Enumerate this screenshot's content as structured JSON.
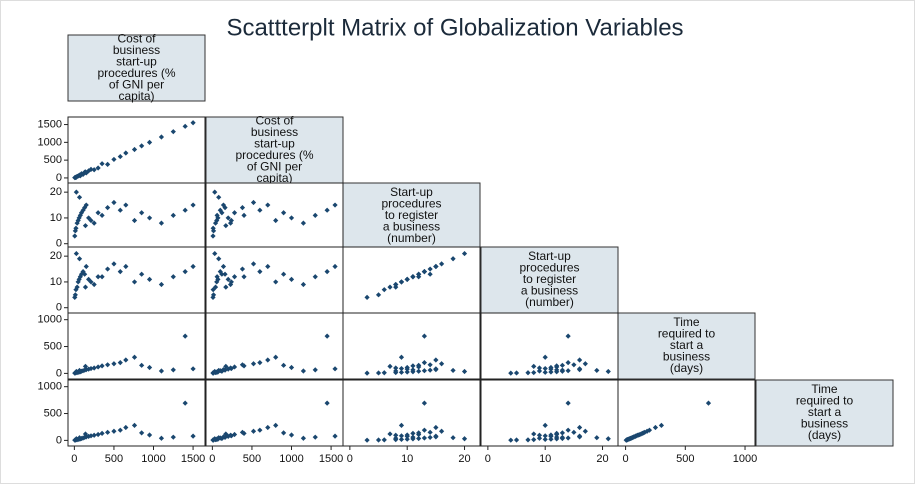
{
  "chart_data": {
    "type": "scatter_matrix",
    "title": "Scattterplt Matrix of Globalization Variables",
    "color": "#1a476f",
    "variables": [
      {
        "label_lines": [
          "Cost of",
          "business",
          "start-up",
          "procedures (%",
          "of GNI per",
          "capita)"
        ],
        "lim": [
          -30,
          1600
        ],
        "ticks": [
          0,
          500,
          1000,
          1500
        ],
        "values": [
          5,
          12,
          20,
          35,
          48,
          60,
          75,
          90,
          110,
          130,
          150,
          180,
          210,
          250,
          300,
          350,
          420,
          500,
          580,
          650,
          760,
          850,
          950,
          1100,
          1250,
          1400,
          1500,
          25,
          65,
          140
        ]
      },
      {
        "label_lines": [
          "Cost of",
          "business",
          "start-up",
          "procedures (%",
          "of GNI per",
          "capita)"
        ],
        "lim": [
          -30,
          1600
        ],
        "ticks": [
          0,
          500,
          1000,
          1500
        ],
        "values": [
          8,
          15,
          10,
          40,
          55,
          70,
          60,
          120,
          100,
          160,
          140,
          200,
          240,
          230,
          280,
          400,
          380,
          520,
          600,
          700,
          800,
          900,
          1000,
          1150,
          1300,
          1450,
          1550,
          30,
          80,
          170
        ]
      },
      {
        "label_lines": [
          "Start-up",
          "procedures",
          "to register",
          "a business",
          "(number)"
        ],
        "lim": [
          -0.5,
          22
        ],
        "ticks": [
          0,
          10,
          20
        ],
        "values": [
          3,
          5,
          6,
          8,
          9,
          10,
          11,
          12,
          13,
          14,
          15,
          10,
          9,
          8,
          12,
          11,
          14,
          16,
          13,
          15,
          9,
          12,
          10,
          8,
          11,
          13,
          15,
          20,
          18,
          7
        ]
      },
      {
        "label_lines": [
          "Start-up",
          "procedures",
          "to register",
          "a business",
          "(number)"
        ],
        "lim": [
          -0.5,
          22
        ],
        "ticks": [
          0,
          10,
          20
        ],
        "values": [
          4,
          5,
          7,
          8,
          10,
          11,
          12,
          13,
          14,
          13,
          16,
          11,
          10,
          9,
          12,
          12,
          15,
          17,
          14,
          16,
          10,
          13,
          11,
          9,
          12,
          14,
          16,
          21,
          19,
          8
        ]
      },
      {
        "label_lines": [
          "Time",
          "required to",
          "start a",
          "business",
          "(days)"
        ],
        "lim": [
          -30,
          1050
        ],
        "ticks": [
          0,
          500,
          1000
        ],
        "values": [
          5,
          8,
          12,
          15,
          20,
          25,
          30,
          40,
          50,
          60,
          70,
          80,
          90,
          100,
          120,
          140,
          160,
          180,
          200,
          250,
          300,
          150,
          110,
          45,
          65,
          694,
          85,
          35,
          55,
          130
        ]
      },
      {
        "label_lines": [
          "Time",
          "required to",
          "start a",
          "business",
          "(days)"
        ],
        "lim": [
          -30,
          1050
        ],
        "ticks": [
          0,
          500,
          1000
        ],
        "values": [
          4,
          7,
          10,
          14,
          18,
          22,
          28,
          35,
          45,
          55,
          65,
          75,
          85,
          95,
          110,
          130,
          150,
          170,
          190,
          240,
          280,
          140,
          100,
          40,
          60,
          694,
          80,
          30,
          50,
          120
        ]
      }
    ]
  }
}
